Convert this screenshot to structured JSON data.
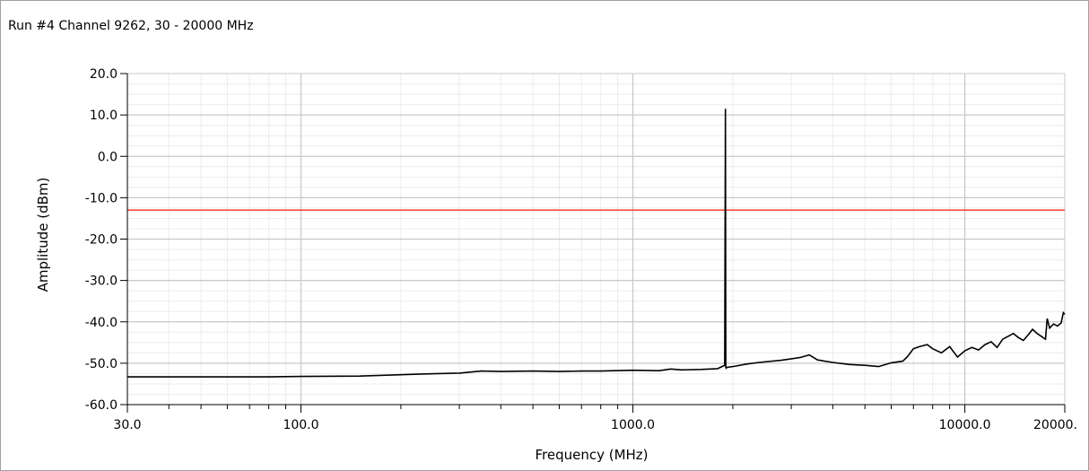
{
  "title": "Run #4 Channel 9262, 30 - 20000 MHz",
  "colors": {
    "trace": "#000000",
    "limit": "#ff2a1a",
    "major_grid": "#c8c8c8",
    "minor_grid": "#ececec",
    "axis": "#000000"
  },
  "chart_data": {
    "type": "line",
    "title": "Run #4 Channel 9262, 30 - 20000 MHz",
    "xlabel": "Frequency (MHz)",
    "ylabel": "Amplitude (dBm)",
    "xscale": "log",
    "xlim": [
      30,
      20000
    ],
    "ylim": [
      -60,
      20
    ],
    "grid": true,
    "x_tick_labels": [
      {
        "value": 30,
        "label": "30.0"
      },
      {
        "value": 100,
        "label": "100.0"
      },
      {
        "value": 1000,
        "label": "1000.0"
      },
      {
        "value": 10000,
        "label": "10000.0"
      },
      {
        "value": 20000,
        "label": "20000."
      }
    ],
    "y_tick_labels": [
      {
        "value": 20,
        "label": "20.0"
      },
      {
        "value": 10,
        "label": "10.0"
      },
      {
        "value": 0,
        "label": "0.0"
      },
      {
        "value": -10,
        "label": "-10.0"
      },
      {
        "value": -20,
        "label": "-20.0"
      },
      {
        "value": -30,
        "label": "-30.0"
      },
      {
        "value": -40,
        "label": "-40.0"
      },
      {
        "value": -50,
        "label": "-50.0"
      },
      {
        "value": -60,
        "label": "-60.0"
      }
    ],
    "limit_line": {
      "value": -13
    },
    "series": [
      {
        "x": [
          30,
          50,
          80,
          100,
          150,
          230,
          300,
          350,
          400,
          500,
          600,
          700,
          800,
          1000,
          1200,
          1300,
          1400,
          1600,
          1800,
          1890,
          1900,
          1905,
          1910,
          1920,
          2000,
          2200,
          2400,
          2800,
          3200,
          3400,
          3600,
          4000,
          4500,
          5000,
          5500,
          6000,
          6500,
          6700,
          7000,
          7300,
          7700,
          8000,
          8500,
          9000,
          9500,
          10000,
          10500,
          11000,
          11500,
          12000,
          12500,
          13000,
          13500,
          14000,
          14500,
          15000,
          15500,
          16000,
          16500,
          17000,
          17500,
          17700,
          18000,
          18500,
          19000,
          19500,
          19800,
          20000
        ],
        "y": [
          -53.3,
          -53.3,
          -53.3,
          -53.2,
          -53.1,
          -52.6,
          -52.4,
          -51.9,
          -52.0,
          -51.9,
          -52.0,
          -51.9,
          -51.9,
          -51.7,
          -51.8,
          -51.4,
          -51.6,
          -51.5,
          -51.3,
          -50.5,
          11.5,
          -51.0,
          -51.2,
          -51.0,
          -50.8,
          -50.2,
          -49.8,
          -49.3,
          -48.6,
          -48.0,
          -49.2,
          -49.8,
          -50.3,
          -50.5,
          -50.8,
          -49.9,
          -49.5,
          -48.5,
          -46.5,
          -46.0,
          -45.5,
          -46.5,
          -47.5,
          -46.0,
          -48.5,
          -47.0,
          -46.2,
          -46.8,
          -45.5,
          -44.8,
          -46.2,
          -44.2,
          -43.5,
          -42.8,
          -43.8,
          -44.5,
          -43.2,
          -41.8,
          -42.8,
          -43.5,
          -44.2,
          -39.2,
          -41.5,
          -40.5,
          -41.0,
          -40.3,
          -37.8,
          -38.2
        ]
      }
    ]
  }
}
